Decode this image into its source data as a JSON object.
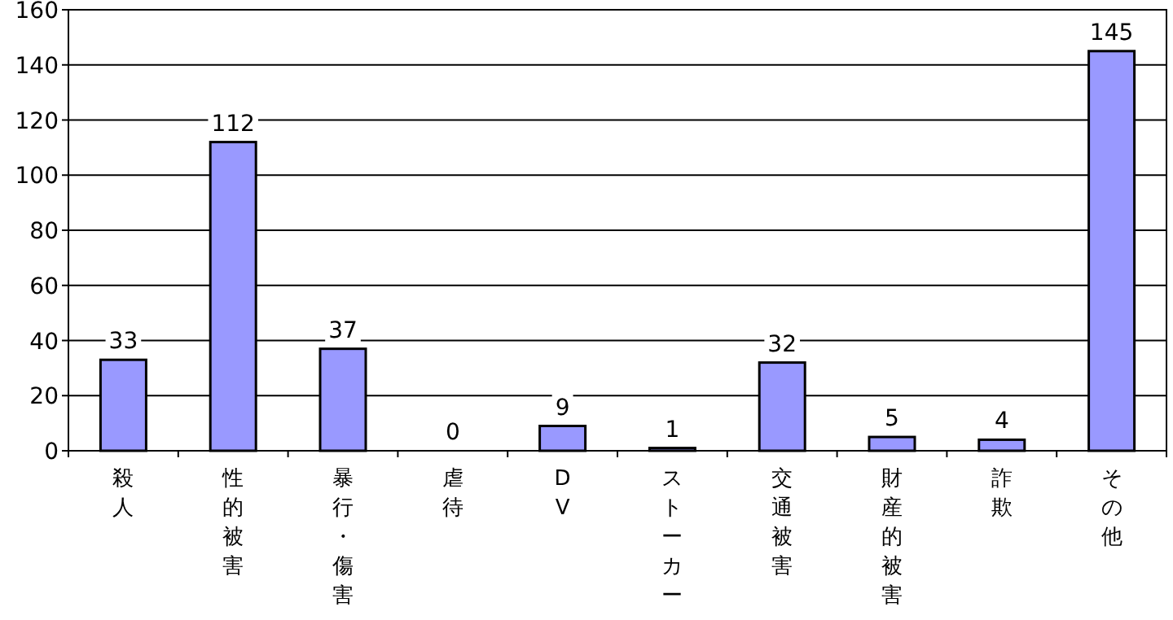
{
  "chart_data": {
    "type": "bar",
    "categories": [
      "殺人",
      "性的被害",
      "暴行・傷害",
      "虐待",
      "DV",
      "ストーカー",
      "交通被害",
      "財産的被害",
      "詐欺",
      "その他"
    ],
    "values": [
      33,
      112,
      37,
      0,
      9,
      1,
      32,
      5,
      4,
      145
    ],
    "color": "#9999ff",
    "ylim": [
      0,
      160
    ],
    "yticks": [
      0,
      20,
      40,
      60,
      80,
      100,
      120,
      140,
      160
    ],
    "grid": "y",
    "data_labels": true
  }
}
